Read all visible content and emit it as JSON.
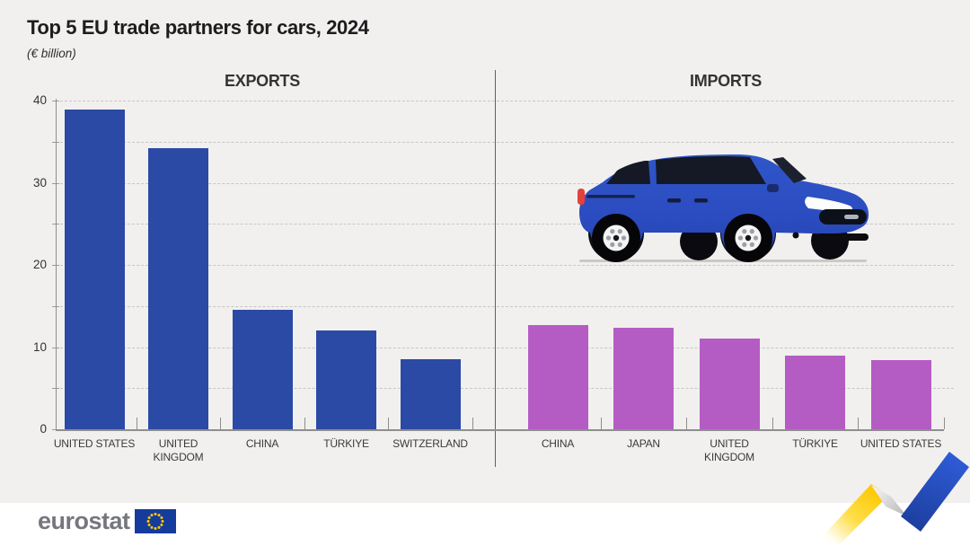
{
  "title": "Top 5 EU trade partners for cars, 2024",
  "subtitle": "(€ billion)",
  "panels": {
    "exports_label": "EXPORTS",
    "imports_label": "IMPORTS"
  },
  "y_axis": {
    "ticks": [
      0,
      10,
      20,
      30,
      40
    ],
    "max": 40,
    "minor_step": 5
  },
  "colors": {
    "background": "#f1f0ee",
    "exports_bar": "#2b4aa5",
    "imports_bar": "#b55cc4",
    "grid": "#c7c7c4",
    "axis": "#8e8e8e",
    "car_blue": "#2b4cc0",
    "ribbon_yellow": "#ffd317",
    "ribbon_blue": "#2750cc",
    "eu_flag_blue": "#153c9d",
    "star_yellow": "#ffcc00"
  },
  "footer": {
    "logo_text": "eurostat"
  },
  "chart_data": [
    {
      "type": "bar",
      "title": "EXPORTS",
      "categories": [
        "UNITED STATES",
        "UNITED KINGDOM",
        "CHINA",
        "TÜRKIYE",
        "SWITZERLAND"
      ],
      "values": [
        38.9,
        34.2,
        14.5,
        12.0,
        8.5
      ],
      "xlabel": "",
      "ylabel": "€ billion",
      "ylim": [
        0,
        40
      ],
      "grid": "dashed horizontal every 5, labels every 10",
      "legend_position": "none",
      "bar_color": "#2b4aa5"
    },
    {
      "type": "bar",
      "title": "IMPORTS",
      "categories": [
        "CHINA",
        "JAPAN",
        "UNITED KINGDOM",
        "TÜRKIYE",
        "UNITED STATES"
      ],
      "values": [
        12.7,
        12.3,
        11.0,
        9.0,
        8.4
      ],
      "xlabel": "",
      "ylabel": "€ billion",
      "ylim": [
        0,
        40
      ],
      "grid": "dashed horizontal every 5, labels every 10",
      "legend_position": "none",
      "bar_color": "#b55cc4"
    }
  ]
}
